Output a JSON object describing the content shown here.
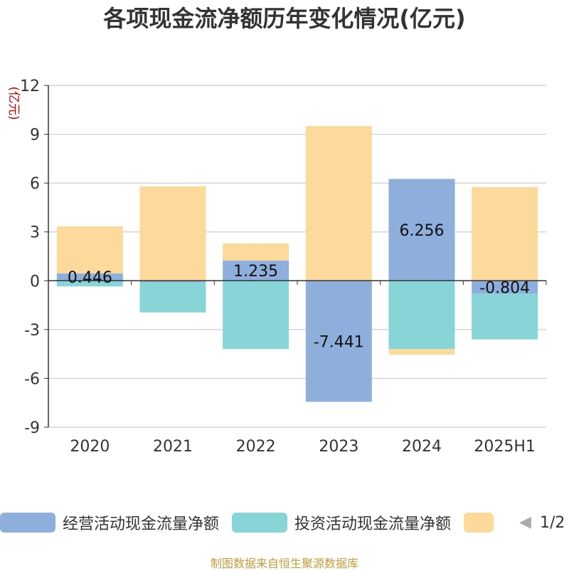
{
  "title": "各项现金流净额历年变化情况(亿元)",
  "footer": "制图数据来自恒生聚源数据库",
  "legend": {
    "page": "1/2"
  },
  "chart_data": {
    "type": "bar",
    "stacked": true,
    "ylabel": "(亿元)",
    "ylim": [
      -9,
      12
    ],
    "yticks": [
      -9,
      -6,
      -3,
      0,
      3,
      6,
      9,
      12
    ],
    "grid": true,
    "legend_position": "bottom",
    "categories": [
      "2020",
      "2021",
      "2022",
      "2023",
      "2024",
      "2025H1"
    ],
    "series": [
      {
        "name": "经营活动现金流量净额",
        "color": "#8eaedb",
        "values": [
          0.446,
          -0.1,
          1.235,
          -7.441,
          6.256,
          -0.804
        ],
        "data_labels": [
          "0.446",
          "",
          "1.235",
          "-7.441",
          "6.256",
          "-0.804"
        ]
      },
      {
        "name": "投资活动现金流量净额",
        "color": "#88d5d8",
        "values": [
          -0.35,
          -1.85,
          -4.2,
          0,
          -4.2,
          -2.8
        ]
      },
      {
        "name": "",
        "color": "#fdd99b",
        "values": [
          2.9,
          5.8,
          1.05,
          9.5,
          -0.35,
          5.75
        ]
      }
    ]
  }
}
